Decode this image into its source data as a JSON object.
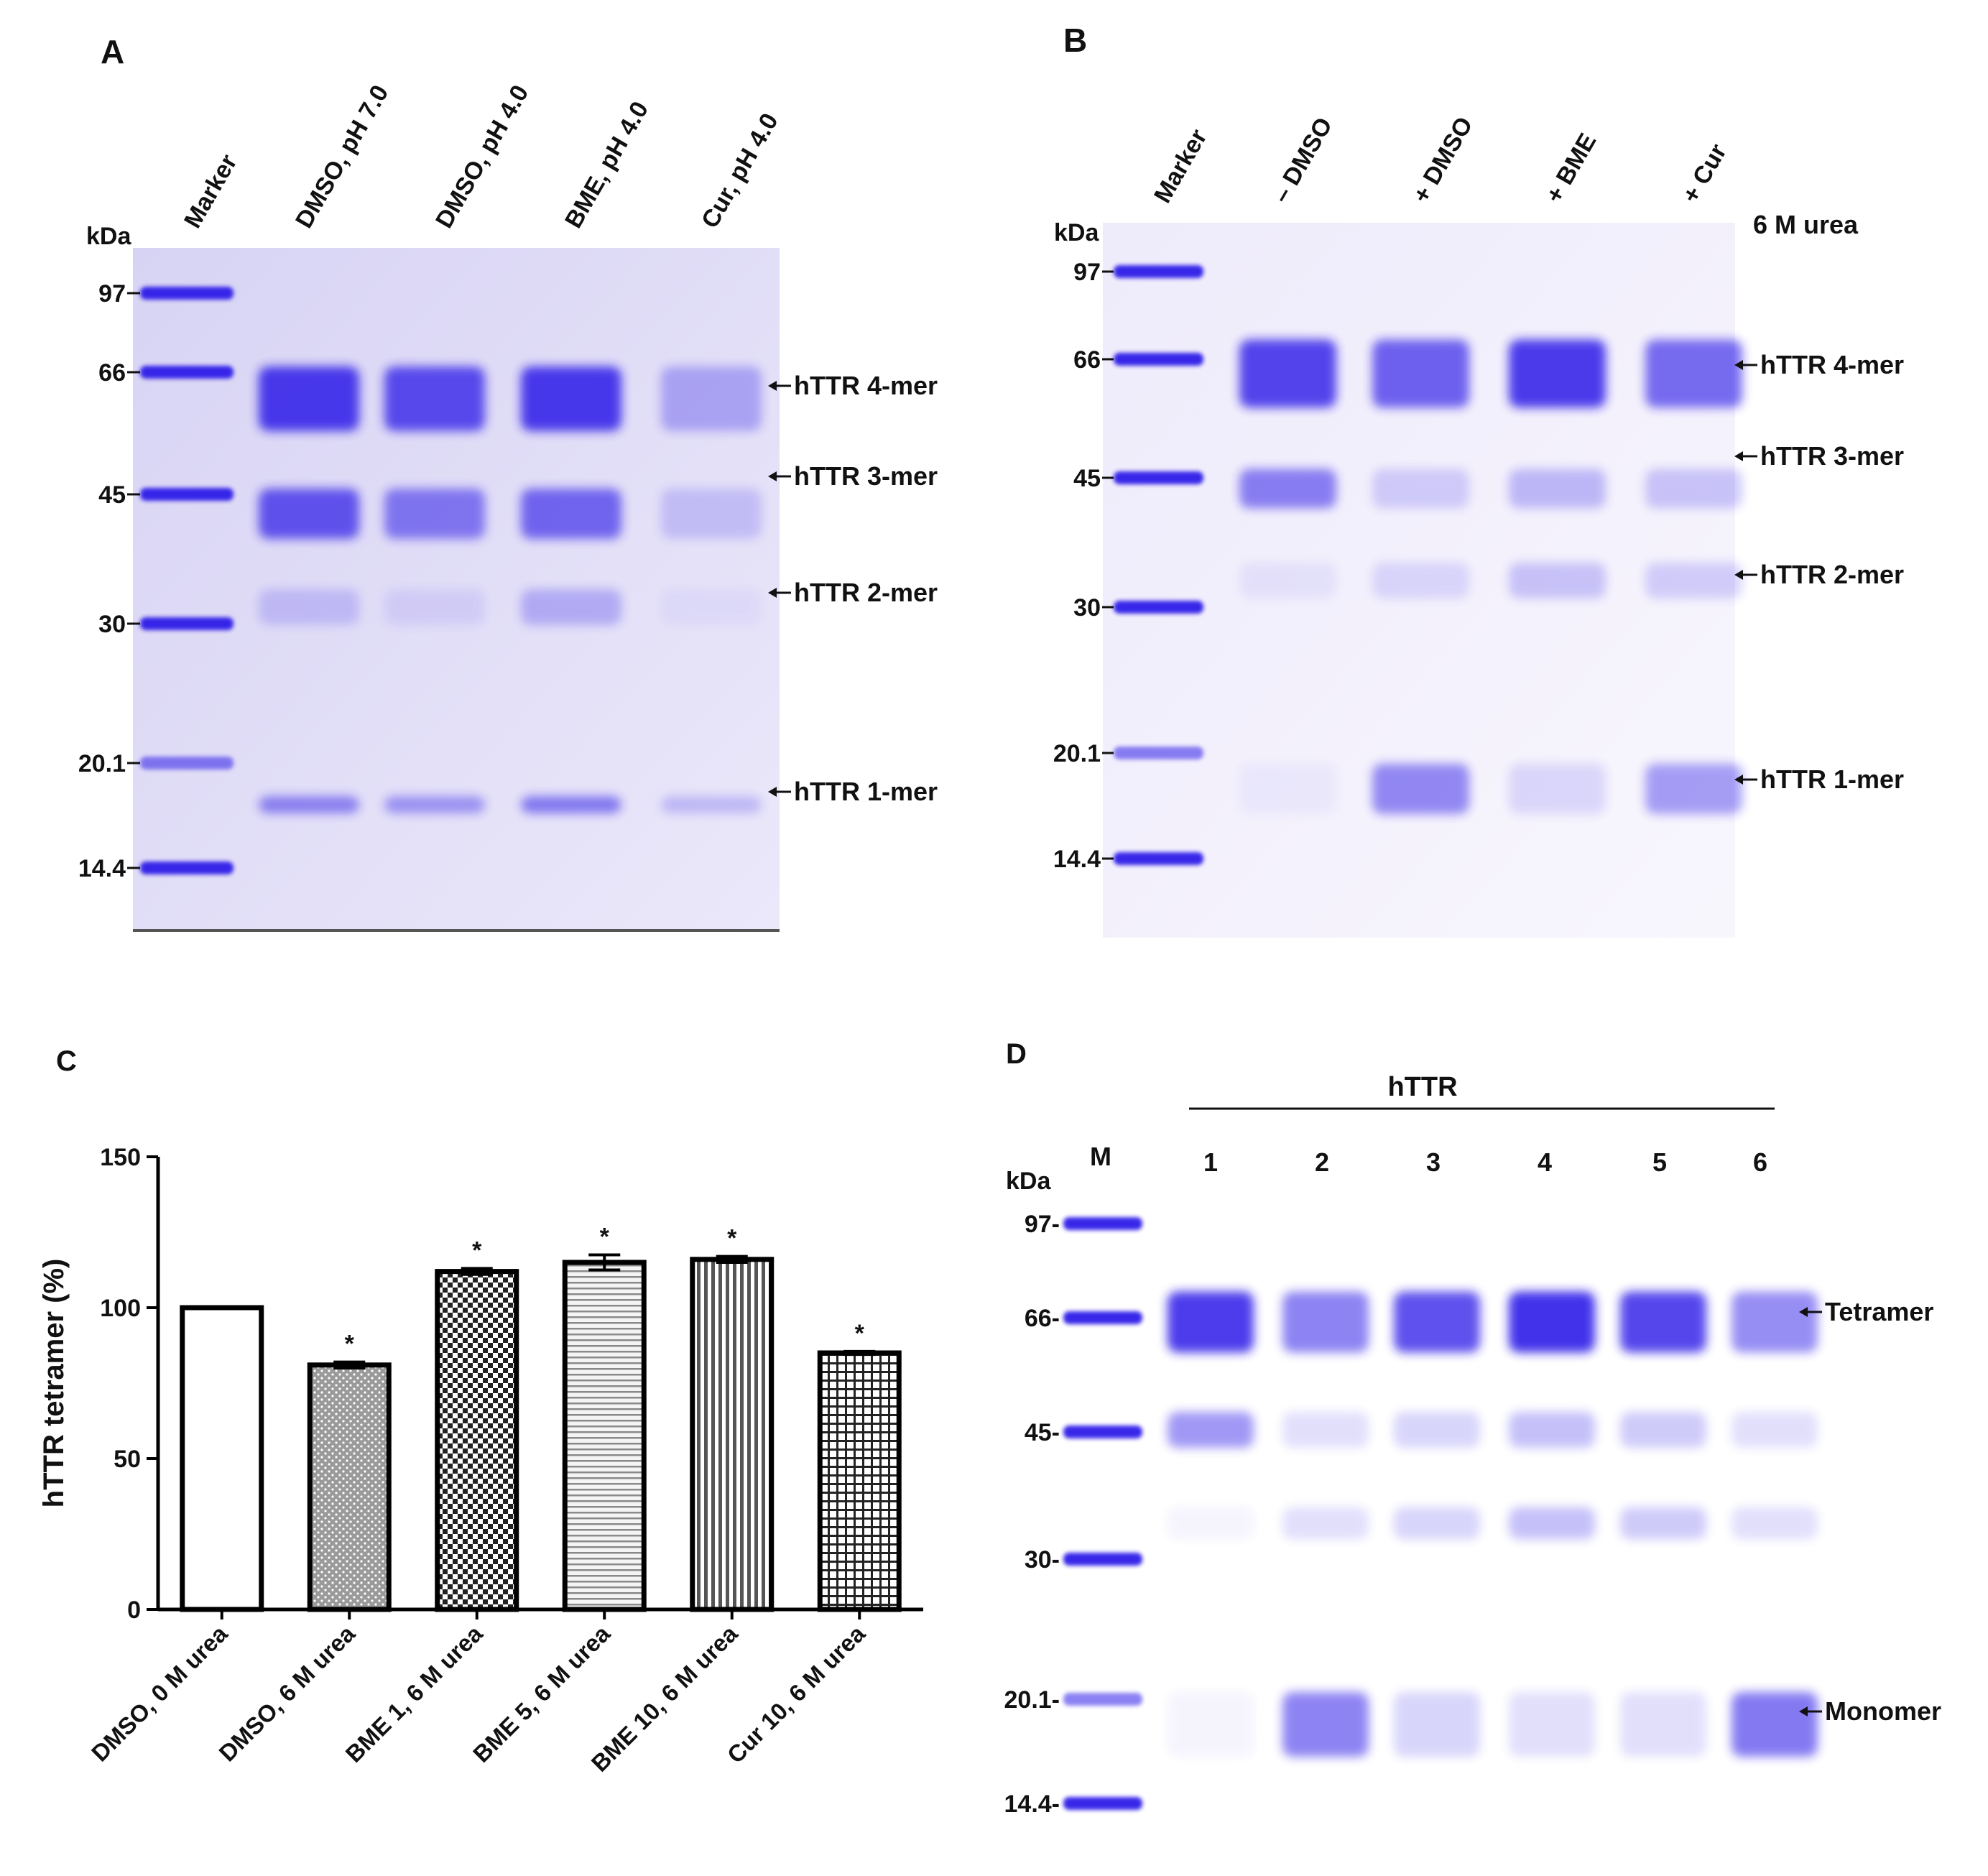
{
  "colors": {
    "band": "#2e1ee8",
    "band_light": "#8e88f0",
    "gel_a": "#dcd8f6",
    "gel_b": "#f2effc",
    "gel_d": "#ffffff",
    "bar_edge": "#000000"
  },
  "panelA": {
    "label": "A",
    "kda": "kDa",
    "lanes": [
      "Marker",
      "DMSO, pH 7.0",
      "DMSO, pH 4.0",
      "BME, pH 4.0",
      "Cur, pH 4.0"
    ],
    "markers": [
      "97",
      "66",
      "45",
      "30",
      "20.1",
      "14.4"
    ],
    "annotations": [
      "hTTR 4-mer",
      "hTTR 3-mer",
      "hTTR 2-mer",
      "hTTR 1-mer"
    ],
    "intensity": [
      [
        0.95,
        0.8,
        0.2,
        0.55
      ],
      [
        0.85,
        0.6,
        0.1,
        0.45
      ],
      [
        0.95,
        0.7,
        0.3,
        0.6
      ],
      [
        0.35,
        0.2,
        0.05,
        0.25
      ]
    ]
  },
  "panelB": {
    "label": "B",
    "kda": "kDa",
    "lanes": [
      "Marker",
      "– DMSO",
      "+ DMSO",
      "+ BME",
      "+ Cur"
    ],
    "urea_label": "6 M urea",
    "markers": [
      "97",
      "66",
      "45",
      "30",
      "20.1",
      "14.4"
    ],
    "annotations": [
      "hTTR 4-mer",
      "hTTR 3-mer",
      "hTTR 2-mer",
      "hTTR 1-mer"
    ],
    "intensity": [
      [
        0.9,
        0.6,
        0.08,
        0.05
      ],
      [
        0.75,
        0.2,
        0.15,
        0.55
      ],
      [
        0.95,
        0.3,
        0.25,
        0.15
      ],
      [
        0.7,
        0.25,
        0.2,
        0.45
      ]
    ]
  },
  "panelC": {
    "label": "C",
    "chart_data": {
      "type": "bar",
      "title": "",
      "xlabel": "",
      "ylabel": "hTTR tetramer (%)",
      "ylim": [
        0,
        150
      ],
      "yticks": [
        0,
        50,
        100,
        150
      ],
      "categories": [
        "DMSO, 0 M urea",
        "DMSO, 6 M urea",
        "BME 1, 6 M urea",
        "BME 5, 6 M urea",
        "BME 10, 6 M urea",
        "Cur 10, 6 M urea"
      ],
      "values": [
        100,
        81,
        112,
        115,
        116,
        85
      ],
      "errors": [
        0,
        1,
        1,
        2.5,
        1,
        0.5
      ],
      "significance": [
        "",
        "*",
        "*",
        "*",
        "*",
        "*"
      ],
      "patterns": [
        "white",
        "dots",
        "checker",
        "hstripe",
        "vstripe",
        "grid"
      ]
    }
  },
  "panelD": {
    "label": "D",
    "kda": "kDa",
    "group": "hTTR",
    "marker_lane": "M",
    "lanes": [
      "1",
      "2",
      "3",
      "4",
      "5",
      "6"
    ],
    "markers": [
      "97-",
      "66-",
      "45-",
      "30-",
      "20.1-",
      "14.4-"
    ],
    "annotations": [
      "Tetramer",
      "Monomer"
    ],
    "intensity": [
      [
        0.95,
        0.5,
        0.05,
        0.05
      ],
      [
        0.6,
        0.15,
        0.15,
        0.6
      ],
      [
        0.85,
        0.2,
        0.2,
        0.2
      ],
      [
        1.0,
        0.3,
        0.3,
        0.15
      ],
      [
        0.9,
        0.25,
        0.25,
        0.15
      ],
      [
        0.55,
        0.15,
        0.15,
        0.65
      ]
    ]
  }
}
